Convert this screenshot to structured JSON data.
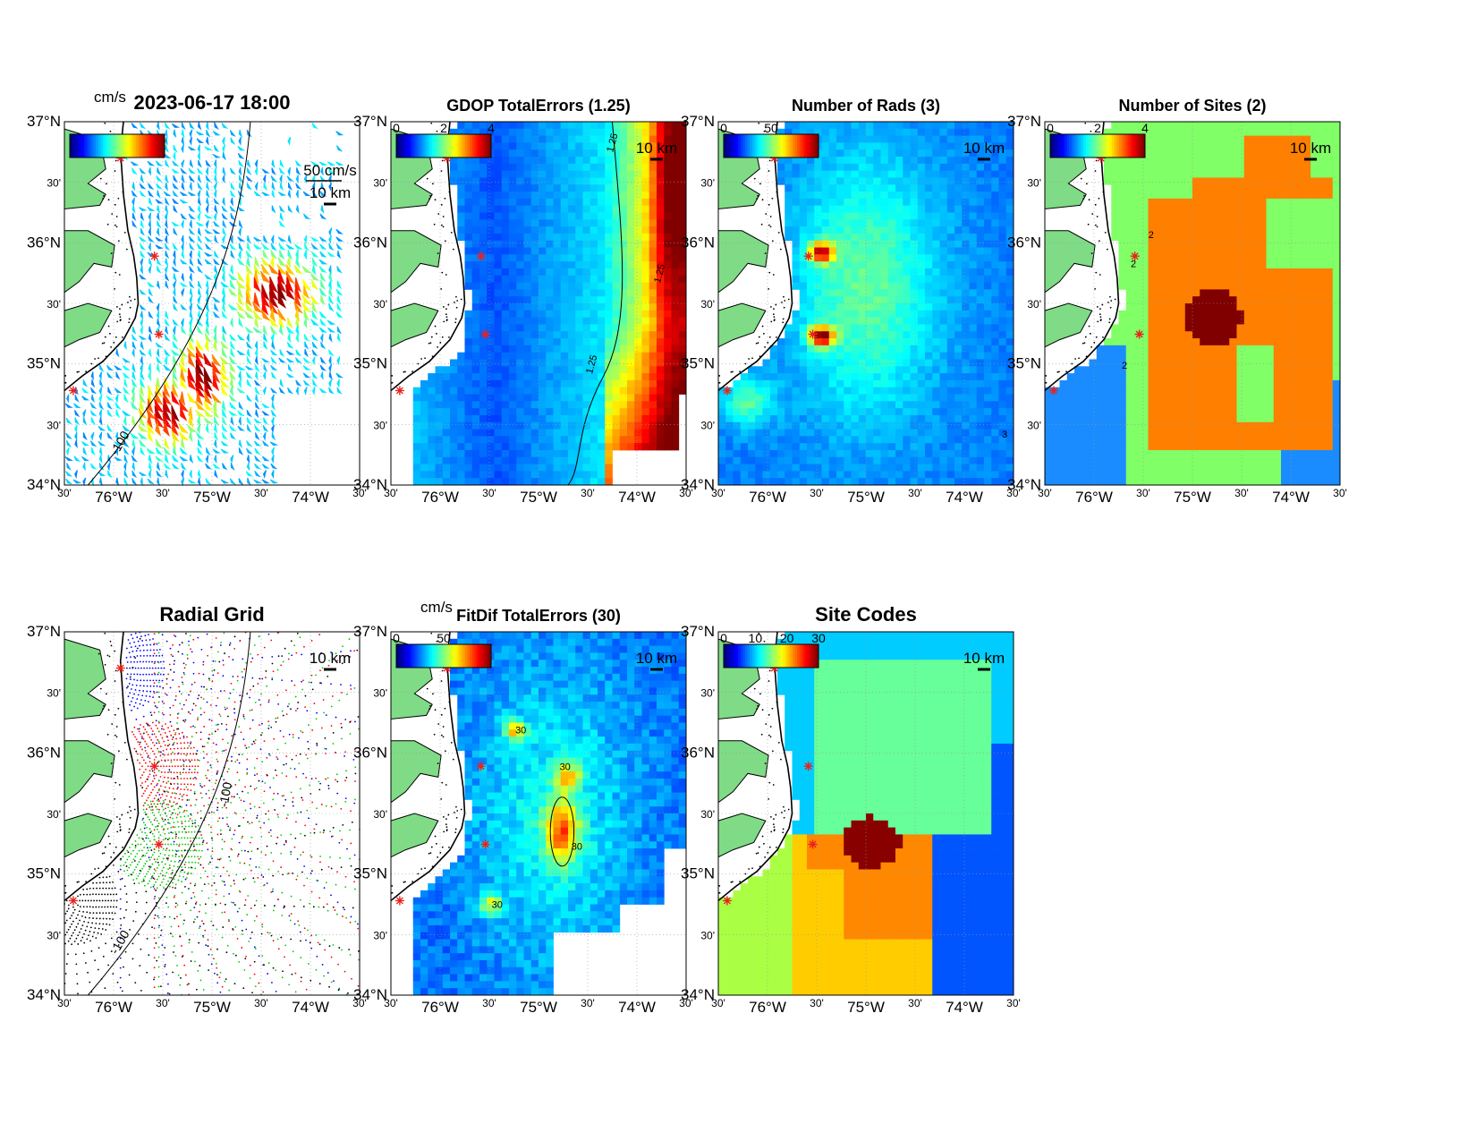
{
  "axes": {
    "lat_labels": [
      "37°N",
      "30'",
      "36°N",
      "30'",
      "35°N",
      "30'",
      "34°N"
    ],
    "lon_labels": [
      "30'",
      "76°W",
      "30'",
      "75°W",
      "30'",
      "74°W",
      "30'"
    ]
  },
  "scale_bar_label": "10 km",
  "depth_contour_label": "-100",
  "panels": [
    {
      "id": "totals",
      "title": "2023-06-17 18:00",
      "colorbar": {
        "unit": "cm/s",
        "ticks": []
      },
      "overlay_texts": [
        "50 cm/s"
      ],
      "contour_labels": []
    },
    {
      "id": "gdop",
      "title": "GDOP TotalErrors (1.25)",
      "colorbar": {
        "unit": "",
        "ticks": [
          "0",
          "2",
          "4"
        ]
      },
      "overlay_texts": [],
      "contour_labels": [
        "1.25",
        "1.25",
        "1.25"
      ]
    },
    {
      "id": "nrads",
      "title": "Number of Rads (3)",
      "colorbar": {
        "unit": "",
        "ticks": [
          "0",
          "50"
        ]
      },
      "overlay_texts": [],
      "contour_labels": [
        "3"
      ]
    },
    {
      "id": "nsites",
      "title": "Number of Sites (2)",
      "colorbar": {
        "unit": "",
        "ticks": [
          "0",
          "2",
          "4"
        ]
      },
      "overlay_texts": [],
      "contour_labels": [
        "2",
        "2",
        "2"
      ]
    },
    {
      "id": "radgrid",
      "title": "Radial Grid",
      "colorbar": null,
      "overlay_texts": [
        "-100"
      ],
      "contour_labels": []
    },
    {
      "id": "fitdif",
      "title": "FitDif TotalErrors (30)",
      "colorbar": {
        "unit": "cm/s",
        "ticks": [
          "0",
          "50"
        ]
      },
      "overlay_texts": [],
      "contour_labels": [
        "30",
        "30",
        "30",
        "30"
      ]
    },
    {
      "id": "sitecodes",
      "title": "Site Codes",
      "colorbar": {
        "unit": "",
        "ticks": [
          "0",
          "10",
          "20",
          "30"
        ]
      },
      "overlay_texts": [],
      "contour_labels": []
    }
  ],
  "colors": {
    "land": "#7fdb86",
    "ocean_white": "#ffffff",
    "site_marker": "#e8221e",
    "colormap": "jet",
    "site_code_regions": [
      "#00ccff",
      "#66ff99",
      "#0055ff",
      "#aaff44",
      "#ffcc00",
      "#ff8800",
      "#880000"
    ],
    "num_sites_regions": [
      "#1a8cff",
      "#80ff66",
      "#ff7f00",
      "#800000"
    ],
    "radial_rings": [
      "#0000ff",
      "#ff0000",
      "#00cc00",
      "#000000"
    ]
  }
}
